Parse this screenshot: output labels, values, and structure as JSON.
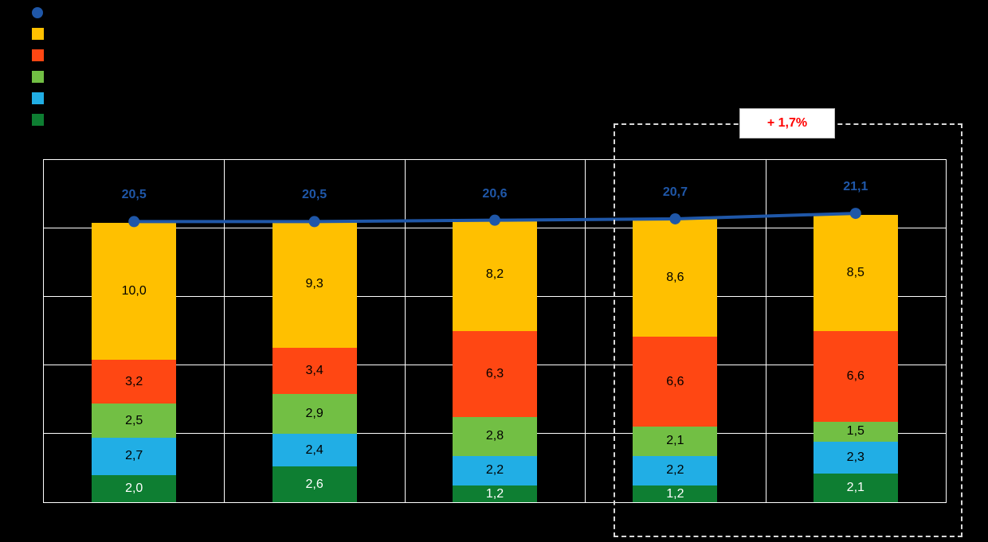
{
  "chart_data": {
    "type": "bar",
    "subtype": "stacked-bars-with-total-line",
    "background": "#000000",
    "title": "",
    "xlabel": "",
    "ylabel": "",
    "categories": [
      "",
      "",
      "",
      "",
      ""
    ],
    "ylim": [
      0,
      25
    ],
    "grid_step": 5,
    "grid": true,
    "legend_position": "top-left",
    "series": [
      {
        "name": "dark-green-segment",
        "color": "#0E7E32",
        "label_color": "#FFFFFF",
        "values": [
          2.0,
          2.6,
          1.2,
          1.2,
          2.1
        ],
        "labels": [
          "2,0",
          "2,6",
          "1,2",
          "1,2",
          "2,1"
        ]
      },
      {
        "name": "cyan-segment",
        "color": "#21AEE5",
        "label_color": "#000000",
        "values": [
          2.7,
          2.4,
          2.2,
          2.2,
          2.3
        ],
        "labels": [
          "2,7",
          "2,4",
          "2,2",
          "2,2",
          "2,3"
        ]
      },
      {
        "name": "light-green-segment",
        "color": "#72BF44",
        "label_color": "#000000",
        "values": [
          2.5,
          2.9,
          2.8,
          2.1,
          1.5
        ],
        "labels": [
          "2,5",
          "2,9",
          "2,8",
          "2,1",
          "1,5"
        ]
      },
      {
        "name": "orange-segment",
        "color": "#FF4713",
        "label_color": "#000000",
        "values": [
          3.2,
          3.4,
          6.3,
          6.6,
          6.6
        ],
        "labels": [
          "3,2",
          "3,4",
          "6,3",
          "6,6",
          "6,6"
        ]
      },
      {
        "name": "yellow-segment",
        "color": "#FFC000",
        "label_color": "#000000",
        "values": [
          10.0,
          9.3,
          8.2,
          8.6,
          8.5
        ],
        "labels": [
          "10,0",
          "9,3",
          "8,2",
          "8,6",
          "8,5"
        ]
      }
    ],
    "line": {
      "name": "total-line",
      "color": "#1F57A8",
      "values": [
        20.5,
        20.5,
        20.6,
        20.7,
        21.1
      ],
      "labels": [
        "20,5",
        "20,5",
        "20,6",
        "20,7",
        "21,1"
      ]
    },
    "annotation": {
      "text": "+ 1,7%",
      "color": "#FF0000",
      "highlighted_category_indexes": [
        3,
        4
      ]
    },
    "legend_markers": [
      {
        "shape": "circle",
        "color": "#1F57A8"
      },
      {
        "shape": "square",
        "color": "#FFC000"
      },
      {
        "shape": "square",
        "color": "#FF4713"
      },
      {
        "shape": "square",
        "color": "#72BF44"
      },
      {
        "shape": "square",
        "color": "#21AEE5"
      },
      {
        "shape": "square",
        "color": "#0E7E32"
      }
    ]
  }
}
